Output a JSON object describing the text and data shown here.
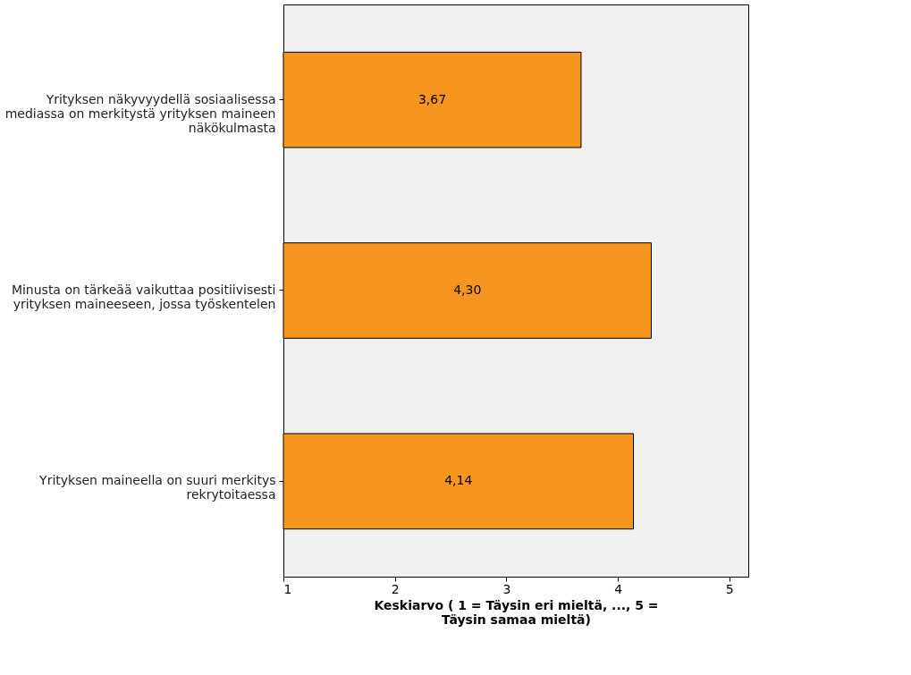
{
  "chart_data": {
    "type": "bar",
    "orientation": "horizontal",
    "xlabel": "Keskiarvo ( 1 = Täysin eri mieltä, ..., 5 = Täysin samaa mieltä)",
    "categories": [
      "Yrityksen näkyvyydellä sosiaalisessa mediassa on merkitystä yrityksen maineen näkökulmasta",
      "Minusta on tärkeää vaikuttaa positiivisesti yrityksen maineeseen, jossa työskentelen",
      "Yrityksen maineella on suuri merkitys rekrytoitaessa"
    ],
    "values": [
      3.67,
      4.3,
      4.14
    ],
    "value_labels": [
      "3,67",
      "4,30",
      "4,14"
    ],
    "color": "#f7961e",
    "xlim": [
      1,
      5.17
    ],
    "xticks": [
      1,
      2,
      3,
      4,
      5
    ],
    "grid": false
  }
}
